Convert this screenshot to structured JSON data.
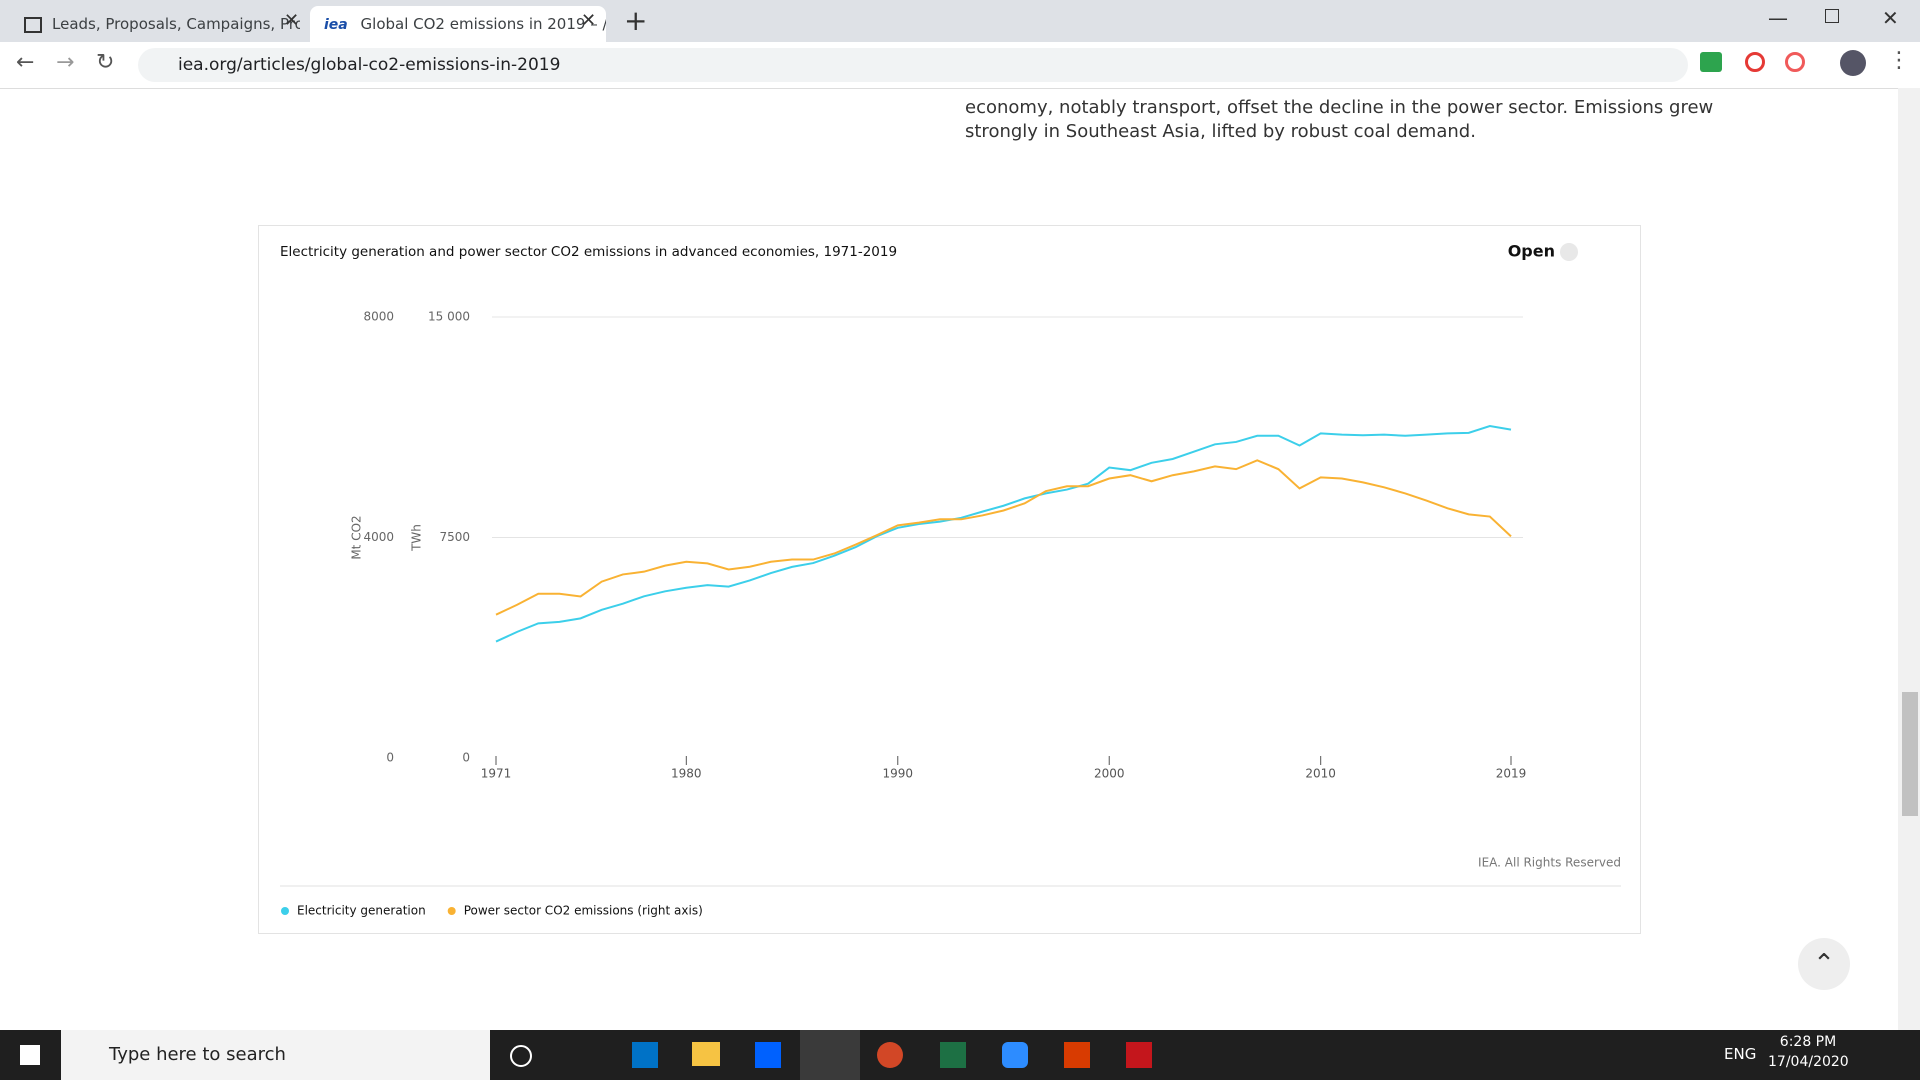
{
  "browser": {
    "tabs": [
      "Leads, Proposals, Campaigns, Pro",
      "Global CO2 emissions in 2019 – /"
    ],
    "tab_icon": "iea",
    "url": "iea.org/articles/global-co2-emissions-in-2019"
  },
  "article": {
    "lines": [
      "economy, notably transport, offset the decline in the power sector. Emissions grew",
      "strongly in Southeast Asia, lifted by robust coal demand."
    ]
  },
  "chart_data": {
    "type": "line",
    "title": "Electricity generation and power sector CO2 emissions in advanced economies, 1971-2019",
    "open_label": "Open",
    "credit": "IEA. All Rights Reserved",
    "ylabel": "TWh",
    "y2label": "Mt CO2",
    "x": [
      1971,
      1972,
      1973,
      1974,
      1975,
      1976,
      1977,
      1978,
      1979,
      1980,
      1981,
      1982,
      1983,
      1984,
      1985,
      1986,
      1987,
      1988,
      1989,
      1990,
      1991,
      1992,
      1993,
      1994,
      1995,
      1996,
      1997,
      1998,
      1999,
      2000,
      2001,
      2002,
      2003,
      2004,
      2005,
      2006,
      2007,
      2008,
      2009,
      2010,
      2011,
      2012,
      2013,
      2014,
      2015,
      2016,
      2017,
      2018,
      2019
    ],
    "series": [
      {
        "name": "Electricity generation",
        "color": "#3ccfea",
        "values": [
          3960,
          4290,
          4580,
          4630,
          4750,
          5040,
          5250,
          5500,
          5670,
          5790,
          5880,
          5830,
          6040,
          6290,
          6500,
          6630,
          6880,
          7170,
          7540,
          7830,
          7960,
          8040,
          8170,
          8380,
          8580,
          8830,
          9000,
          9130,
          9330,
          9880,
          9790,
          10040,
          10170,
          10420,
          10670,
          10750,
          10960,
          10960,
          10630,
          11040,
          11000,
          10980,
          11000,
          10960,
          11000,
          11040,
          11060,
          11290,
          11170
        ]
      },
      {
        "name": "Power sector CO2 emissions (right axis)",
        "color": "#f9b233",
        "axis": "y2",
        "values": [
          2600,
          2780,
          2980,
          2980,
          2930,
          3200,
          3330,
          3380,
          3490,
          3560,
          3530,
          3420,
          3470,
          3560,
          3600,
          3600,
          3710,
          3870,
          4040,
          4220,
          4270,
          4330,
          4330,
          4400,
          4490,
          4620,
          4840,
          4930,
          4930,
          5070,
          5130,
          5020,
          5130,
          5200,
          5290,
          5240,
          5400,
          5240,
          4890,
          5090,
          5070,
          5000,
          4910,
          4800,
          4670,
          4530,
          4420,
          4380,
          4020
        ]
      }
    ],
    "xlim": [
      1971,
      2019
    ],
    "xticks": [
      1971,
      1980,
      1990,
      2000,
      2010,
      2019
    ],
    "ylim": [
      0,
      15000
    ],
    "yticks": [
      0,
      7500,
      {
        "value": 15000,
        "label": "15 000"
      }
    ],
    "y2lim": [
      0,
      8000
    ],
    "y2ticks": [
      0,
      4000,
      8000
    ],
    "grid": true
  },
  "taskbar": {
    "search": "Type here to search",
    "language": "ENG",
    "time": "6:28 PM",
    "date": "17/04/2020"
  }
}
